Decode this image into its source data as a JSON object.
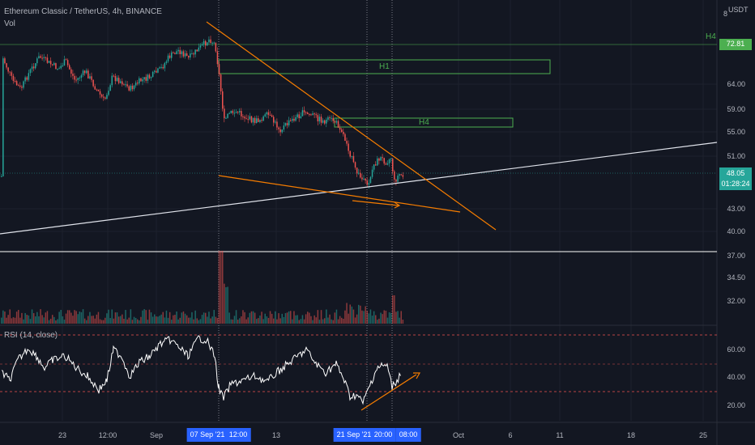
{
  "header": {
    "symbol_line": "Ethereum Classic / TetherUS, 4h, BINANCE",
    "vol_label": "Vol",
    "rsi_label": "RSI (14, close)"
  },
  "price_axis": {
    "currency": "USDT",
    "scale_marker": "8",
    "ticks": [
      "64.00",
      "59.00",
      "55.00",
      "51.00",
      "43.00",
      "40.00",
      "37.00",
      "34.50",
      "32.00"
    ],
    "h4_label": "H4",
    "h4_level_badge": "72.81",
    "current_price": "48.05",
    "countdown": "01:28:24"
  },
  "rsi_axis": {
    "ticks": [
      "60.00",
      "40.00",
      "20.00"
    ]
  },
  "time_axis": {
    "ticks": [
      "23",
      "12:00",
      "Sep",
      "13",
      "Oct",
      "6",
      "11",
      "18",
      "25"
    ],
    "highlighted": [
      "07 Sep '21",
      "12:00",
      "21 Sep '21",
      "20:00",
      "08:00"
    ]
  },
  "zones": [
    {
      "label": "H1"
    },
    {
      "label": "H4"
    }
  ],
  "colors": {
    "background": "#131722",
    "up_candle": "#26a69a",
    "down_candle": "#ef5350",
    "zone_border": "#4caf50",
    "trendline": "#f57c00",
    "support_line": "#ffffff",
    "rsi_line": "#ffffff",
    "rsi_band": "#ef5350",
    "badge_green": "#26a69a",
    "highlight": "#2962ff"
  }
}
